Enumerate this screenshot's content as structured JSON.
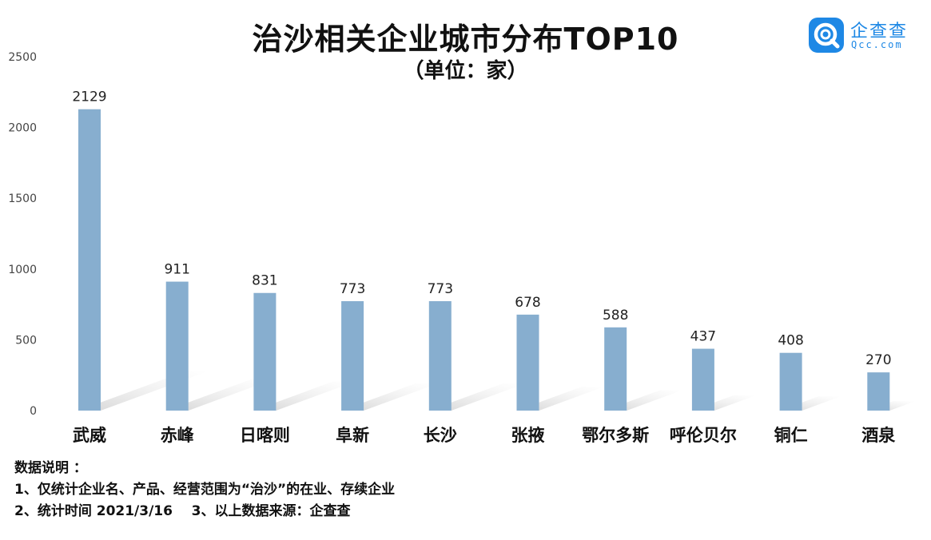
{
  "header": {
    "title": "治沙相关企业城市分布TOP10",
    "subtitle": "（单位：家）"
  },
  "logo": {
    "name": "企查查",
    "domain": "Qcc.com",
    "brand_color": "#1e88e5"
  },
  "notes": {
    "heading": "数据说明 ：",
    "line1": "1、仅统计企业名、产品、经营范围为“治沙”的在业、存续企业",
    "line2": "2、统计时间 2021/3/16    3、以上数据来源：企查查"
  },
  "chart_data": {
    "type": "bar",
    "categories": [
      "武威",
      "赤峰",
      "日喀则",
      "阜新",
      "长沙",
      "张掖",
      "鄂尔多斯",
      "呼伦贝尔",
      "铜仁",
      "酒泉"
    ],
    "values": [
      2129,
      911,
      831,
      773,
      773,
      678,
      588,
      437,
      408,
      270
    ],
    "y_ticks": [
      0,
      500,
      1000,
      1500,
      2000,
      2500
    ],
    "ylim": [
      0,
      2500
    ],
    "grid": false,
    "bar_color": "#87aecf",
    "data_labels": true
  }
}
